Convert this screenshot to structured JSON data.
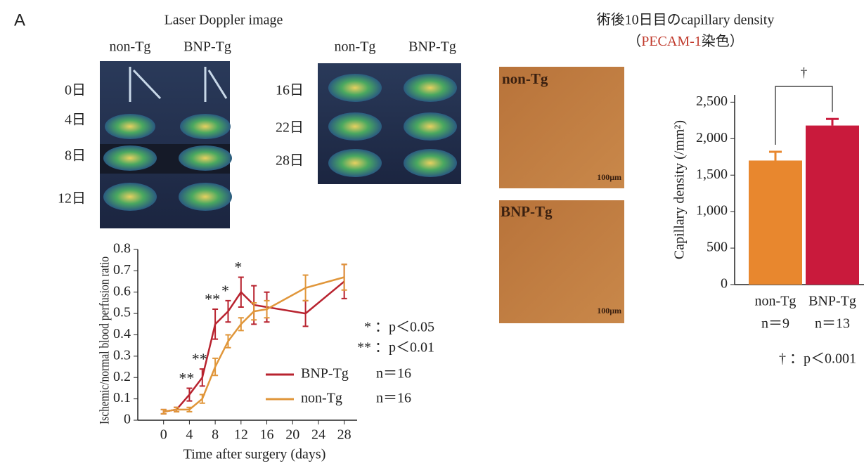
{
  "panel_label": "A",
  "laser_doppler": {
    "title": "Laser Doppler image",
    "columns_left": [
      "non-Tg",
      "BNP-Tg"
    ],
    "columns_right": [
      "non-Tg",
      "BNP-Tg"
    ],
    "days_left": [
      "0日",
      "4日",
      "8日",
      "12日"
    ],
    "days_right": [
      "16日",
      "22日",
      "28日"
    ]
  },
  "histology": {
    "title": "術後10日目のcapillary density",
    "subtitle_open": "（",
    "subtitle_stain": "PECAM-1",
    "subtitle_close": "染色）",
    "panels": [
      "non-Tg",
      "BNP-Tg"
    ],
    "scale_bars": [
      "100μm",
      "100μm"
    ]
  },
  "chart_data": [
    {
      "type": "line",
      "x_label": "Time after surgery (days)",
      "y_label": "Ischemic/normal blood perfusion ratio",
      "x": [
        0,
        2,
        4,
        6,
        8,
        10,
        12,
        14,
        16,
        22,
        28
      ],
      "series": [
        {
          "name": "BNP-Tg",
          "n_label": "n＝16",
          "color": "#b8232f",
          "values": [
            0.04,
            0.05,
            0.12,
            0.2,
            0.45,
            0.51,
            0.6,
            0.54,
            0.53,
            0.5,
            0.65
          ],
          "errors": [
            0.01,
            0.01,
            0.03,
            0.04,
            0.07,
            0.05,
            0.07,
            0.09,
            0.07,
            0.06,
            0.08
          ]
        },
        {
          "name": "non-Tg",
          "n_label": "n＝16",
          "color": "#e0963a",
          "values": [
            0.04,
            0.05,
            0.05,
            0.1,
            0.25,
            0.37,
            0.45,
            0.51,
            0.52,
            0.62,
            0.67
          ],
          "errors": [
            0.01,
            0.01,
            0.01,
            0.02,
            0.04,
            0.03,
            0.03,
            0.04,
            0.04,
            0.06,
            0.06
          ]
        }
      ],
      "significance_marks": [
        null,
        null,
        "**",
        "**",
        "**",
        "*",
        "*",
        null,
        null,
        null,
        null
      ],
      "notes": [
        "* ：p＜0.05",
        "** ：p＜0.01"
      ],
      "xlim": [
        -4,
        30
      ],
      "xticks": [
        0,
        4,
        8,
        12,
        16,
        20,
        24,
        28
      ],
      "ylim": [
        0,
        0.8
      ],
      "yticks": [
        0,
        0.1,
        0.2,
        0.3,
        0.4,
        0.5,
        0.6,
        0.7,
        0.8
      ]
    },
    {
      "type": "bar",
      "y_label": "Capillary density (/mm²)",
      "categories": [
        "non-Tg",
        "BNP-Tg"
      ],
      "sample_sizes": [
        "n＝9",
        "n＝13"
      ],
      "values": [
        1700,
        2180
      ],
      "errors": [
        120,
        90
      ],
      "colors": [
        "#e8872e",
        "#c91a3c"
      ],
      "significance": "†",
      "note": "† ：p＜0.001",
      "ylim": [
        0,
        2600
      ],
      "yticks": [
        0,
        500,
        {
          "value": 1000,
          "label": "1,000"
        },
        {
          "value": 1500,
          "label": "1,500"
        },
        {
          "value": 2000,
          "label": "2,000"
        },
        {
          "value": 2500,
          "label": "2,500"
        }
      ]
    }
  ]
}
